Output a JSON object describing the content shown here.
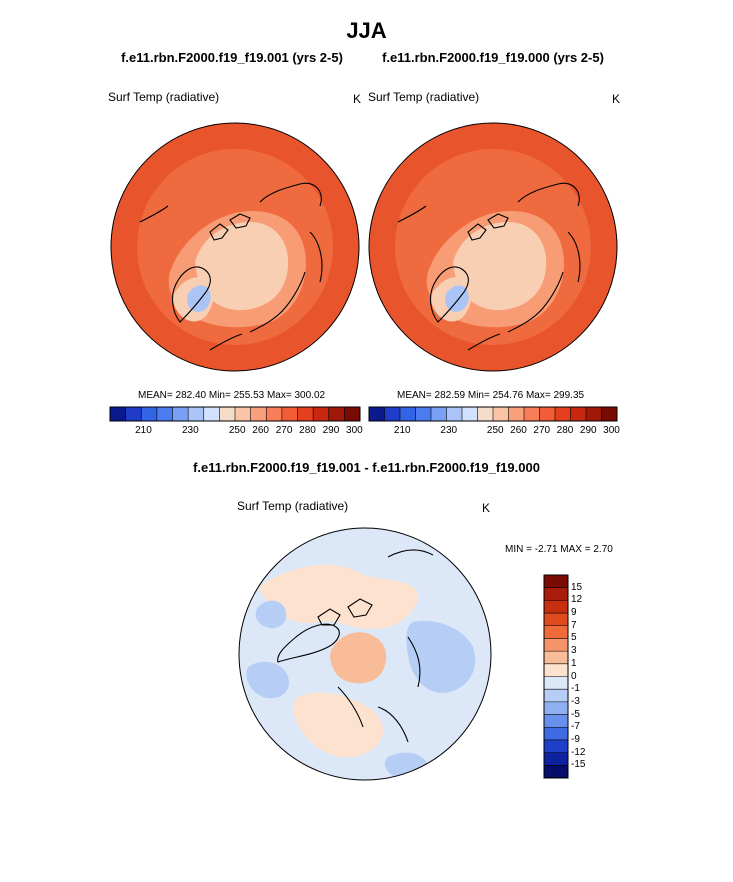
{
  "title": "JJA",
  "panels": [
    {
      "case": "f.e11.rbn.F2000.f19_f19.001 (yrs 2-5)",
      "field": "Surf Temp (radiative)",
      "unit": "K",
      "stats": "MEAN= 282.40  Min= 255.53  Max= 300.02",
      "mean": 282.4,
      "min": 255.53,
      "max": 300.02
    },
    {
      "case": "f.e11.rbn.F2000.f19_f19.000 (yrs 2-5)",
      "field": "Surf Temp (radiative)",
      "unit": "K",
      "stats": "MEAN= 282.59  Min= 254.76  Max= 299.35",
      "mean": 282.59,
      "min": 254.76,
      "max": 299.35
    }
  ],
  "colorbar": {
    "tick_labels": [
      "210",
      "230",
      "250",
      "260",
      "270",
      "280",
      "290",
      "300"
    ],
    "colors": [
      "#0a1a8c",
      "#1e3cc8",
      "#3264e6",
      "#4a7cf0",
      "#7aa0f5",
      "#aac4fa",
      "#d2e2fc",
      "#f5dcc8",
      "#fbc4a6",
      "#f9a07c",
      "#f77e58",
      "#f25c36",
      "#e4401e",
      "#c82810",
      "#a01808",
      "#780c04"
    ]
  },
  "difference": {
    "title": "f.e11.rbn.F2000.f19_f19.001 - f.e11.rbn.F2000.f19_f19.000",
    "field": "Surf Temp (radiative)",
    "unit": "K",
    "minmax_text": "MIN =  -2.71 MAX =  2.70",
    "min": -2.71,
    "max": 2.7,
    "levels": [
      "15",
      "12",
      "9",
      "7",
      "5",
      "3",
      "1",
      "0",
      "-1",
      "-3",
      "-5",
      "-7",
      "-9",
      "-12",
      "-15"
    ],
    "colors": [
      "#7a0a04",
      "#a81c0c",
      "#c82e10",
      "#e04a1e",
      "#f06a3a",
      "#f5946a",
      "#f9bc98",
      "#fde2d0",
      "#dce8f8",
      "#b6cdf5",
      "#8eb0f0",
      "#6690ec",
      "#3e6ae4",
      "#1e40c8",
      "#0e22a0",
      "#060e6a"
    ]
  },
  "colors": {
    "land_outline": "#000000",
    "warm_ocean": "#ec5a32",
    "mid_land": "#f48c60",
    "cold_interior": "#f9cfb4",
    "ice_min": "#a9c4f5"
  }
}
